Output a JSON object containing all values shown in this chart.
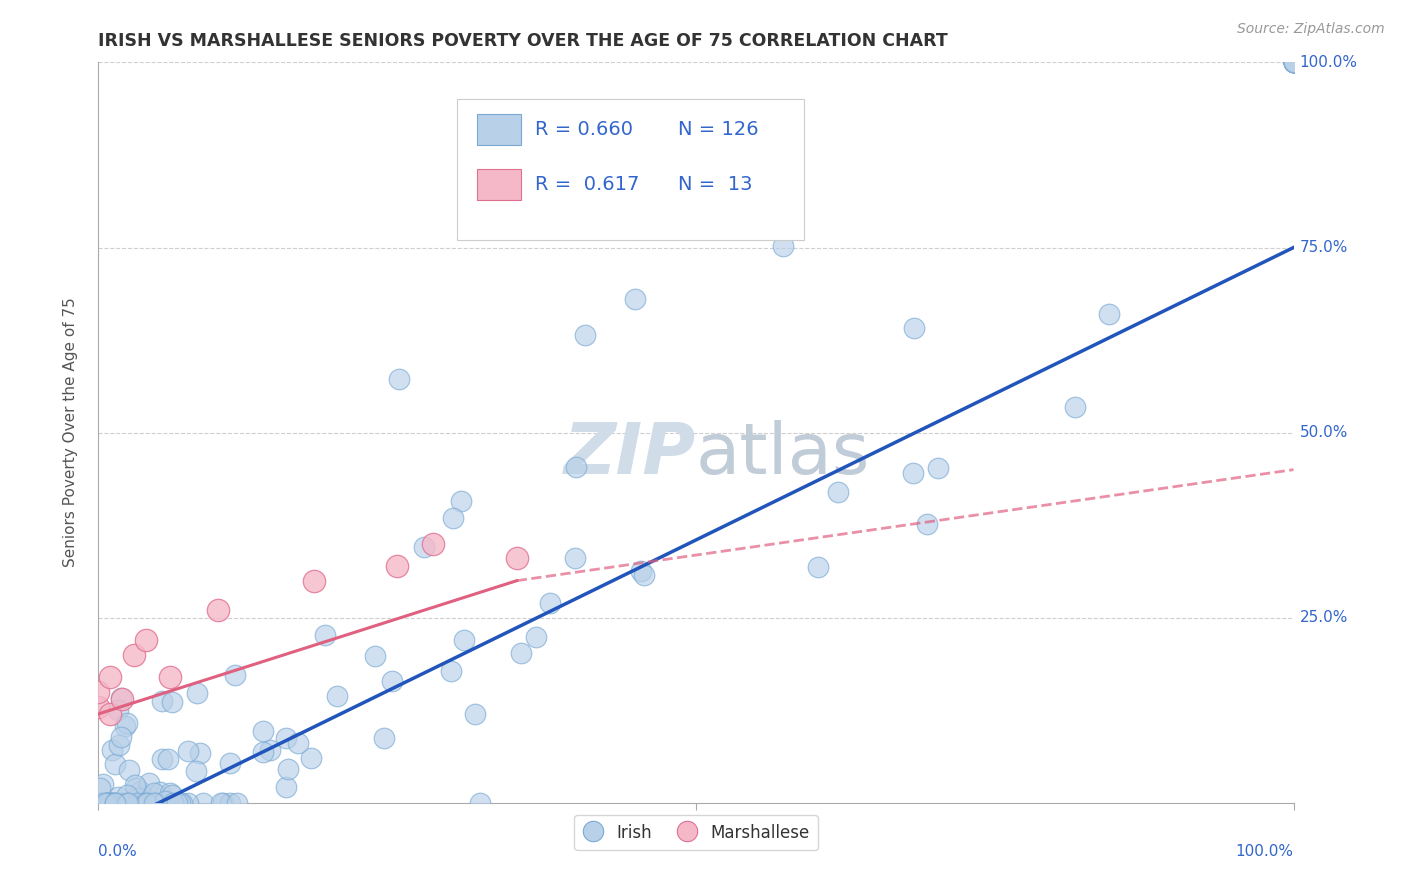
{
  "title": "IRISH VS MARSHALLESE SENIORS POVERTY OVER THE AGE OF 75 CORRELATION CHART",
  "source": "Source: ZipAtlas.com",
  "ylabel": "Seniors Poverty Over the Age of 75",
  "irish_R": 0.66,
  "irish_N": 126,
  "marshallese_R": 0.617,
  "marshallese_N": 13,
  "irish_color": "#b8d0e8",
  "irish_edge_color": "#7aaad4",
  "marshallese_color": "#f4b8c8",
  "marshallese_edge_color": "#e07090",
  "irish_line_color": "#2255bb",
  "marshallese_line_color": "#e06080",
  "background_color": "#ffffff",
  "grid_color": "#bbbbbb",
  "watermark_color": "#d0dde8",
  "axis_color": "#aaaaaa",
  "label_color": "#3366cc",
  "title_color": "#333333",
  "source_color": "#999999",
  "legend_text_color": "#3366cc",
  "legend_label_color": "#333333"
}
